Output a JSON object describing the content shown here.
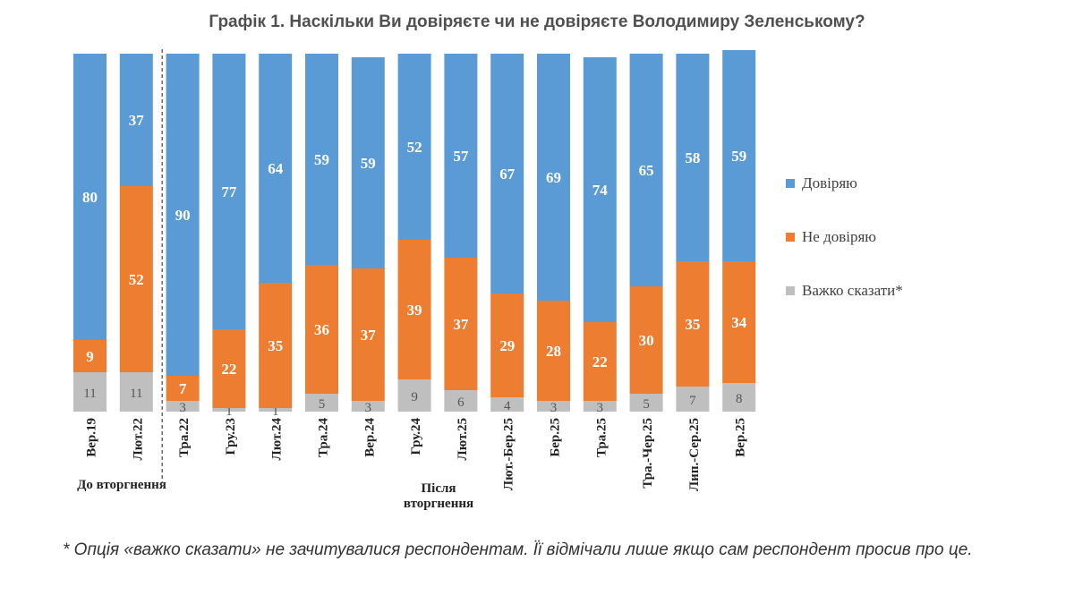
{
  "chart_data": {
    "type": "bar",
    "stacked": true,
    "title": "Графік 1. Наскільки Ви довіряєте чи не довіряєте Володимиру Зеленському?",
    "categories": [
      "Вер.19",
      "Лют.22",
      "Тра.22",
      "Гру.23",
      "Лют.24",
      "Тра.24",
      "Вер.24",
      "Гру.24",
      "Лют.25",
      "Лют.-Бер.25",
      "Бер.25",
      "Тра.25",
      "Тра.-Чер.25",
      "Лип.-Сер.25",
      "Вер.25"
    ],
    "series": [
      {
        "name": "Важко сказати*",
        "color": "#bfbfbf",
        "values": [
          11,
          11,
          3,
          1,
          1,
          5,
          3,
          9,
          6,
          4,
          3,
          3,
          5,
          7,
          8
        ]
      },
      {
        "name": "Не довіряю",
        "color": "#ed7d31",
        "values": [
          9,
          52,
          7,
          22,
          35,
          36,
          37,
          39,
          37,
          29,
          28,
          22,
          30,
          35,
          34
        ]
      },
      {
        "name": "Довіряю",
        "color": "#5b9bd5",
        "values": [
          80,
          37,
          90,
          77,
          64,
          59,
          59,
          52,
          57,
          67,
          69,
          74,
          65,
          58,
          59
        ]
      }
    ],
    "ylim": [
      0,
      100
    ],
    "legend_position": "right",
    "groups": [
      {
        "label": "До вторгнення"
      },
      {
        "label": "Після вторгнення"
      }
    ]
  },
  "footnote": "* Опція «важко сказати» не зачитувалися респондентам. Її відмічали лише якщо сам респондент просив про це."
}
